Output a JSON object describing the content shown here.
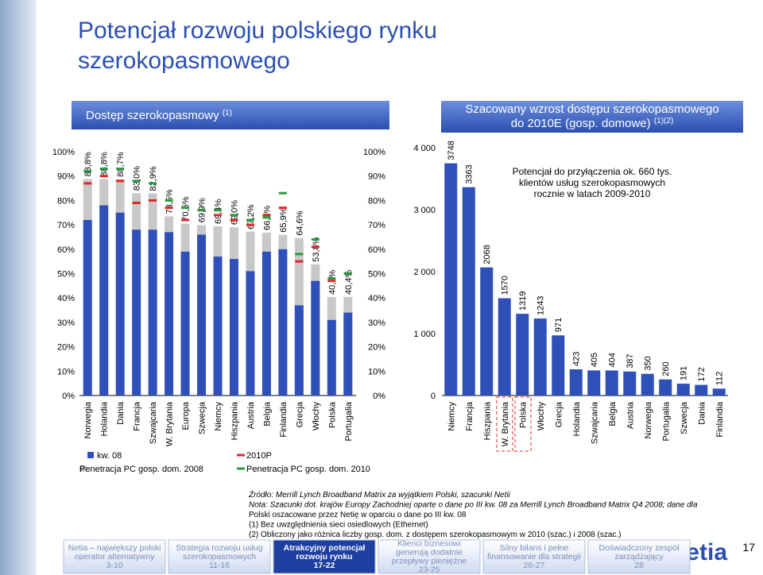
{
  "slide": {
    "title": [
      "Potencjał rozwoju polskiego rynku",
      "szerokopasmowego"
    ],
    "notes": [
      "Źródło: Merrill Lynch Broadband Matrix za wyjątkiem Polski, szacunki Netii",
      "Nota: Szacunki dot. krajów Europy Zachodniej oparte o dane po III kw. 08 za Merrill Lynch Broadband Matrix Q4 2008; dane dla",
      "Polski oszacowane przez Netię w oparciu o dane po III kw. 08",
      "(1) Bez uwzględnienia sieci osiedlowych (Ethernet)",
      "(2) Obliczony jako różnica liczby gosp. dom. z dostępem szerokopasmowym w 2010 (szac.) i 2008 (szac.)"
    ],
    "tabs": [
      {
        "lines": [
          "Netia – największy polski",
          "operator alternatywny",
          "3-10"
        ]
      },
      {
        "lines": [
          "Strategia rozwoju usług",
          "szerokopasmowych",
          "11-16"
        ]
      },
      {
        "lines": [
          "Atrakcyjny potencjał",
          "rozwoju rynku",
          "17-22"
        ]
      },
      {
        "lines": [
          "Klienci biznesowi",
          "generują dodatnie",
          "przepływy pieniężne",
          "23-25"
        ]
      },
      {
        "lines": [
          "Silny bilans i pełne",
          "finansowanie dla strategii",
          "26-27"
        ]
      },
      {
        "lines": [
          "Doświadczony zespół",
          "zarządzający",
          "28"
        ]
      }
    ],
    "page": "17",
    "logo": "netia"
  },
  "chart_data": [
    {
      "type": "bar_markers",
      "title": [
        "Dostęp szerokopasmowy"
      ],
      "title_note": "(1)",
      "categories": [
        "Norwegia",
        "Holandia",
        "Dania",
        "Francja",
        "Szwajcaria",
        "W. Brytania",
        "Europa",
        "Szwecja",
        "Niemcy",
        "Hiszpania",
        "Austria",
        "Belgia",
        "Finlandia",
        "Grecja",
        "Włochy",
        "Polska",
        "Portugalia"
      ],
      "series": [
        {
          "name": "Penetracja PC gosp. dom. 2008",
          "color": "#c8c8c8",
          "style": "bar",
          "values": [
            88.8,
            88.8,
            88.7,
            83.0,
            82.9,
            73.5,
            70.5,
            69.9,
            69.4,
            69.0,
            67.2,
            66.8,
            65.9,
            64.6,
            53.8,
            40.4,
            40.4
          ],
          "value_labels": [
            "88,8%",
            "88,8%",
            "88,7%",
            "83,0%",
            "82,9%",
            "73,5%",
            "70,5%",
            "69,9%",
            "69,4%",
            "69,0%",
            "67,2%",
            "66,8%",
            "65,9%",
            "64,6%",
            "53,8%",
            "40,4%",
            "40,4%"
          ]
        },
        {
          "name": "kw. 08",
          "color": "#2f50b8",
          "style": "bar",
          "values": [
            72,
            78,
            75,
            68,
            68,
            67,
            59,
            66,
            57,
            56,
            51,
            59,
            60,
            37,
            47,
            31,
            34
          ]
        },
        {
          "name": "2010P",
          "color": "#e02828",
          "style": "dash",
          "values": [
            87,
            90,
            88,
            79,
            80,
            77,
            72,
            76,
            74,
            72,
            70,
            74,
            77,
            55,
            61,
            47,
            50
          ]
        },
        {
          "name": "Penetracja PC gosp. dom. 2010",
          "color": "#2a9a40",
          "style": "dash",
          "values": [
            92,
            93,
            93,
            88,
            87,
            80,
            77,
            76,
            76,
            74,
            72,
            73,
            83,
            58,
            64,
            48,
            50
          ]
        }
      ],
      "ylim": [
        0,
        100
      ],
      "yticks": [
        {
          "value": 0,
          "label": "0%"
        },
        {
          "value": 10,
          "label": "10%"
        },
        {
          "value": 20,
          "label": "20%"
        },
        {
          "value": 30,
          "label": "30%"
        },
        {
          "value": 40,
          "label": "40%"
        },
        {
          "value": 50,
          "label": "50%"
        },
        {
          "value": 60,
          "label": "60%"
        },
        {
          "value": 70,
          "label": "70%"
        },
        {
          "value": 80,
          "label": "80%"
        },
        {
          "value": 90,
          "label": "90%"
        },
        {
          "value": 100,
          "label": "100%"
        }
      ],
      "y2lim": [
        0,
        100
      ],
      "y2ticks": [
        {
          "value": 0,
          "label": "0%"
        },
        {
          "value": 10,
          "label": "10%"
        },
        {
          "value": 20,
          "label": "20%"
        },
        {
          "value": 30,
          "label": "30%"
        },
        {
          "value": 40,
          "label": "40%"
        },
        {
          "value": 50,
          "label": "50%"
        },
        {
          "value": 60,
          "label": "60%"
        },
        {
          "value": 70,
          "label": "70%"
        },
        {
          "value": 80,
          "label": "80%"
        },
        {
          "value": 90,
          "label": "90%"
        },
        {
          "value": 100,
          "label": "100%"
        }
      ]
    },
    {
      "type": "bar",
      "title": [
        "Szacowany wzrost dostępu szerokopasmowego",
        "do 2010E (gosp. domowe)"
      ],
      "title_note": "(1)(2)",
      "annotation": [
        "Potencjał do przyłączenia ok. 660 tys.",
        "klientów usług szerokopasmowych",
        "rocznie w latach 2009-2010"
      ],
      "categories": [
        "Niemcy",
        "Francja",
        "Hiszpania",
        "W. Brytania",
        "Polska",
        "Włochy",
        "Grecja",
        "Holandia",
        "Szwajcaria",
        "Belgia",
        "Austria",
        "Norwegia",
        "Portugalia",
        "Szwecja",
        "Dania",
        "Finlandia"
      ],
      "values": [
        3748,
        3363,
        2068,
        1570,
        1319,
        1243,
        971,
        423,
        405,
        404,
        387,
        350,
        260,
        191,
        172,
        112
      ],
      "color": "#2f50b8",
      "ylim": [
        0,
        4000
      ],
      "yticks": [
        0,
        {
          "value": 1000,
          "label": "1 000"
        },
        {
          "value": 2000,
          "label": "2 000"
        },
        {
          "value": 3000,
          "label": "3 000"
        },
        {
          "value": 4000,
          "label": "4 000"
        }
      ]
    }
  ]
}
